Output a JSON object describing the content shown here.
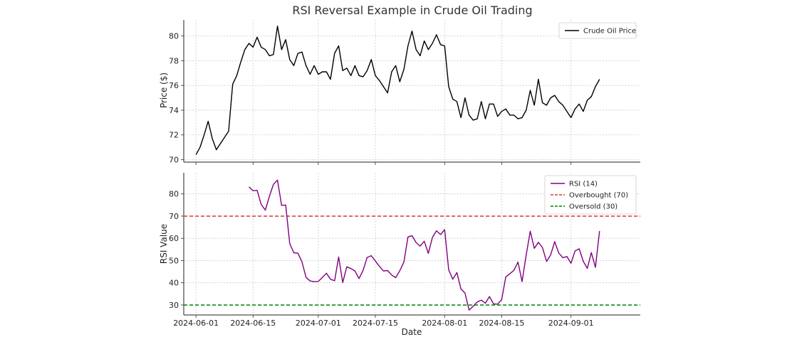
{
  "chart_data": [
    {
      "type": "line",
      "title": "RSI Reversal Example in Crude Oil Trading",
      "ylabel": "Price ($)",
      "xlabel": "",
      "x_start": "2024-06-01",
      "xlim": [
        "2024-05-29",
        "2024-09-18"
      ],
      "ylim": [
        69.8,
        81.3
      ],
      "y_ticks": [
        "70",
        "72",
        "74",
        "76",
        "78",
        "80"
      ],
      "x_ticks": [
        "2024-06-01",
        "2024-06-15",
        "2024-07-01",
        "2024-07-15",
        "2024-08-01",
        "2024-08-15",
        "2024-09-01"
      ],
      "grid": true,
      "legend_position": "top-right",
      "series": [
        {
          "name": "Crude Oil Price",
          "color": "#000000",
          "values": [
            70.4,
            71.0,
            72.0,
            73.1,
            71.7,
            70.8,
            71.3,
            71.8,
            72.3,
            76.1,
            76.8,
            77.9,
            78.9,
            79.4,
            79.1,
            79.9,
            79.1,
            78.9,
            78.4,
            78.5,
            80.8,
            78.9,
            79.7,
            78.1,
            77.6,
            78.6,
            78.7,
            77.6,
            76.9,
            77.6,
            76.9,
            77.1,
            77.1,
            76.5,
            78.6,
            79.2,
            77.2,
            77.4,
            76.8,
            77.6,
            76.8,
            76.7,
            77.2,
            78.1,
            76.8,
            76.4,
            75.9,
            75.4,
            77.1,
            77.6,
            76.3,
            77.3,
            79.2,
            80.4,
            78.9,
            78.4,
            79.6,
            78.9,
            79.4,
            80.1,
            79.3,
            79.2,
            75.9,
            74.9,
            74.7,
            73.4,
            75.0,
            73.6,
            73.2,
            73.3,
            74.7,
            73.3,
            74.5,
            74.5,
            73.5,
            73.9,
            74.1,
            73.6,
            73.6,
            73.3,
            73.4,
            74.0,
            75.6,
            74.4,
            76.5,
            74.6,
            74.4,
            75.0,
            75.2,
            74.7,
            74.4,
            73.9,
            73.4,
            74.1,
            74.5,
            73.9,
            74.8,
            75.1,
            75.9,
            76.5
          ]
        }
      ]
    },
    {
      "type": "line",
      "title": "",
      "ylabel": "RSI Value",
      "xlabel": "Date",
      "x_start": "2024-06-01",
      "xlim": [
        "2024-05-29",
        "2024-09-18"
      ],
      "ylim": [
        25.5,
        89.5
      ],
      "y_ticks": [
        "30",
        "40",
        "50",
        "60",
        "70",
        "80"
      ],
      "x_ticks": [
        "2024-06-01",
        "2024-06-15",
        "2024-07-01",
        "2024-07-15",
        "2024-08-01",
        "2024-08-15",
        "2024-09-01"
      ],
      "grid": true,
      "legend_position": "top-right",
      "series": [
        {
          "name": "RSI (14)",
          "color": "#800080",
          "start_index": 13,
          "values": [
            83.2,
            81.4,
            81.6,
            75.3,
            72.7,
            78.8,
            84.3,
            86.2,
            74.8,
            75.0,
            57.7,
            53.5,
            53.3,
            49.4,
            42.4,
            40.8,
            40.5,
            40.6,
            42.4,
            44.3,
            41.6,
            40.9,
            51.6,
            40.1,
            47.2,
            46.4,
            45.3,
            41.9,
            45.6,
            51.4,
            52.2,
            49.8,
            47.4,
            45.3,
            45.5,
            43.5,
            42.3,
            45.4,
            49.3,
            60.6,
            61.2,
            58.1,
            56.5,
            58.7,
            53.2,
            60.4,
            63.4,
            61.7,
            63.9,
            45.8,
            41.6,
            44.6,
            37.2,
            35.4,
            27.7,
            29.4,
            31.4,
            32.2,
            30.8,
            33.8,
            30.5,
            30.4,
            32.4,
            42.6,
            44.1,
            45.6,
            49.3,
            40.5,
            52.5,
            63.2,
            55.5,
            58.2,
            55.9,
            49.6,
            52.5,
            58.5,
            53.4,
            51.3,
            51.8,
            48.8,
            54.3,
            55.3,
            49.7,
            46.5,
            53.6,
            46.9,
            63.3
          ]
        }
      ],
      "reference_lines": [
        {
          "name": "Overbought (70)",
          "value": 70,
          "color": "#dd3333"
        },
        {
          "name": "Oversold (30)",
          "value": 30,
          "color": "#008000"
        }
      ]
    }
  ]
}
